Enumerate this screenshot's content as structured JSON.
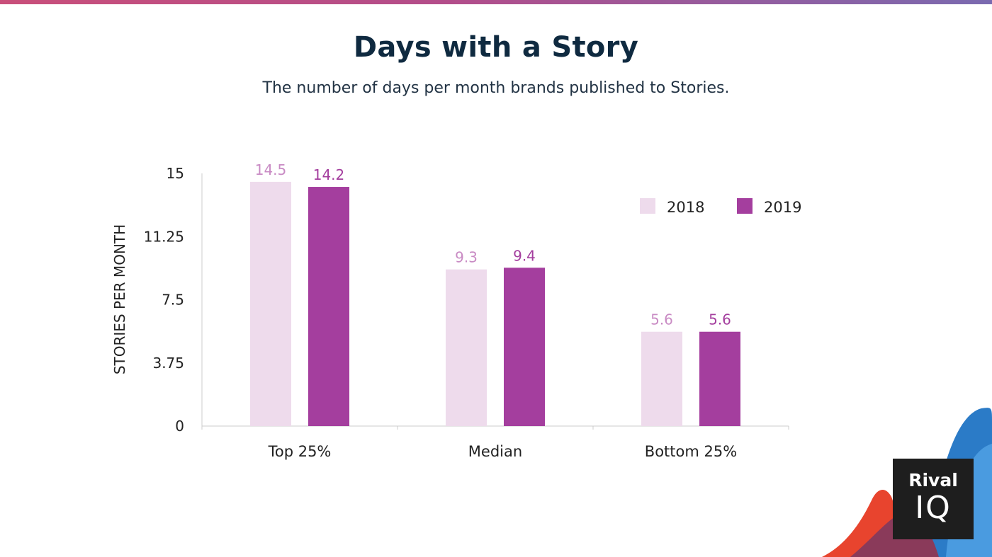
{
  "header": {
    "title": "Days with a Story",
    "subtitle": "The number of days per month brands published to Stories."
  },
  "logo": {
    "line1": "Rival",
    "line2": "IQ"
  },
  "colors": {
    "series_2018": "#eedbec",
    "series_2019": "#a43e9e",
    "label_2018": "#c98bc4",
    "label_2019": "#a43e9e",
    "title": "#0f2a40",
    "axis": "#cccccc"
  },
  "chart_data": {
    "type": "bar",
    "title": "Days with a Story",
    "subtitle": "The number of days per month brands published to Stories.",
    "categories": [
      "Top 25%",
      "Median",
      "Bottom 25%"
    ],
    "series": [
      {
        "name": "2018",
        "values": [
          14.5,
          9.3,
          5.6
        ]
      },
      {
        "name": "2019",
        "values": [
          14.2,
          9.4,
          5.6
        ]
      }
    ],
    "xlabel": "",
    "ylabel": "STORIES PER MONTH",
    "ylim": [
      0,
      15
    ],
    "yticks": [
      "0",
      "3.75",
      "7.5",
      "11.25",
      "15"
    ],
    "grid": false,
    "legend": "top-right",
    "data_labels": true
  }
}
